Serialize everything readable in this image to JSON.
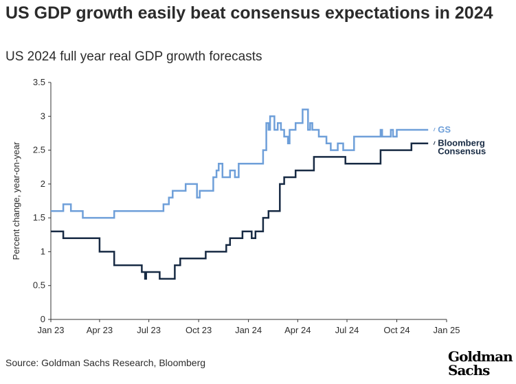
{
  "header": {
    "title": "US GDP growth easily beat consensus expectations in 2024",
    "subtitle": "US 2024 full year real GDP growth forecasts"
  },
  "footer": {
    "source": "Source: Goldman Sachs Research, Bloomberg",
    "logo_line1": "Goldman",
    "logo_line2": "Sachs"
  },
  "colors": {
    "gs": "#6e9fd9",
    "consensus": "#172a43",
    "axis": "#333333"
  },
  "chart_data": {
    "type": "line",
    "title": "US GDP growth easily beat consensus expectations in 2024",
    "subtitle": "US 2024 full year real GDP growth forecasts",
    "ylabel": "Percent change, year-on-year",
    "xlabel": "",
    "ylim": [
      0,
      3.5
    ],
    "yticks": [
      "0",
      "0.5",
      "1",
      "1.5",
      "2",
      "2.5",
      "3",
      "3.5"
    ],
    "xlim": [
      "2023-01-01",
      "2025-01-01"
    ],
    "xticks": [
      {
        "date": "2023-01-01",
        "label": "Jan 23"
      },
      {
        "date": "2023-04-01",
        "label": "Apr 23"
      },
      {
        "date": "2023-07-01",
        "label": "Jul 23"
      },
      {
        "date": "2023-10-01",
        "label": "Oct 23"
      },
      {
        "date": "2024-01-01",
        "label": "Jan 24"
      },
      {
        "date": "2024-04-01",
        "label": "Apr 24"
      },
      {
        "date": "2024-07-01",
        "label": "Jul 24"
      },
      {
        "date": "2024-10-01",
        "label": "Oct 24"
      },
      {
        "date": "2025-01-01",
        "label": "Jan 25"
      }
    ],
    "grid": false,
    "series": [
      {
        "name": "GS",
        "points": [
          [
            "2023-01-01",
            1.6
          ],
          [
            "2023-01-24",
            1.6
          ],
          [
            "2023-01-24",
            1.7
          ],
          [
            "2023-02-07",
            1.7
          ],
          [
            "2023-02-07",
            1.6
          ],
          [
            "2023-03-01",
            1.6
          ],
          [
            "2023-03-01",
            1.5
          ],
          [
            "2023-04-28",
            1.5
          ],
          [
            "2023-04-28",
            1.6
          ],
          [
            "2023-07-28",
            1.6
          ],
          [
            "2023-07-28",
            1.7
          ],
          [
            "2023-08-07",
            1.7
          ],
          [
            "2023-08-07",
            1.8
          ],
          [
            "2023-08-14",
            1.8
          ],
          [
            "2023-08-14",
            1.9
          ],
          [
            "2023-09-07",
            1.9
          ],
          [
            "2023-09-07",
            2.0
          ],
          [
            "2023-09-28",
            2.0
          ],
          [
            "2023-09-28",
            1.8
          ],
          [
            "2023-10-03",
            1.8
          ],
          [
            "2023-10-03",
            1.9
          ],
          [
            "2023-10-28",
            1.9
          ],
          [
            "2023-10-28",
            2.1
          ],
          [
            "2023-11-03",
            2.1
          ],
          [
            "2023-11-03",
            2.2
          ],
          [
            "2023-11-07",
            2.2
          ],
          [
            "2023-11-07",
            2.3
          ],
          [
            "2023-11-14",
            2.3
          ],
          [
            "2023-11-14",
            2.1
          ],
          [
            "2023-11-28",
            2.1
          ],
          [
            "2023-11-28",
            2.2
          ],
          [
            "2023-12-07",
            2.2
          ],
          [
            "2023-12-07",
            2.1
          ],
          [
            "2023-12-14",
            2.1
          ],
          [
            "2023-12-14",
            2.3
          ],
          [
            "2024-01-28",
            2.3
          ],
          [
            "2024-01-28",
            2.5
          ],
          [
            "2024-02-03",
            2.5
          ],
          [
            "2024-02-03",
            2.9
          ],
          [
            "2024-02-07",
            2.9
          ],
          [
            "2024-02-07",
            2.8
          ],
          [
            "2024-02-10",
            2.8
          ],
          [
            "2024-02-10",
            3.0
          ],
          [
            "2024-02-18",
            3.0
          ],
          [
            "2024-02-18",
            2.8
          ],
          [
            "2024-02-24",
            2.8
          ],
          [
            "2024-02-24",
            2.9
          ],
          [
            "2024-03-01",
            2.9
          ],
          [
            "2024-03-01",
            2.8
          ],
          [
            "2024-03-07",
            2.8
          ],
          [
            "2024-03-07",
            2.7
          ],
          [
            "2024-03-14",
            2.7
          ],
          [
            "2024-03-14",
            2.6
          ],
          [
            "2024-03-17",
            2.6
          ],
          [
            "2024-03-17",
            2.8
          ],
          [
            "2024-03-28",
            2.8
          ],
          [
            "2024-03-28",
            2.9
          ],
          [
            "2024-04-10",
            2.9
          ],
          [
            "2024-04-10",
            3.1
          ],
          [
            "2024-04-20",
            3.1
          ],
          [
            "2024-04-20",
            2.8
          ],
          [
            "2024-04-24",
            2.8
          ],
          [
            "2024-04-24",
            2.9
          ],
          [
            "2024-04-28",
            2.9
          ],
          [
            "2024-04-28",
            2.8
          ],
          [
            "2024-05-10",
            2.8
          ],
          [
            "2024-05-10",
            2.7
          ],
          [
            "2024-05-24",
            2.7
          ],
          [
            "2024-05-24",
            2.6
          ],
          [
            "2024-06-01",
            2.6
          ],
          [
            "2024-06-01",
            2.5
          ],
          [
            "2024-06-14",
            2.5
          ],
          [
            "2024-06-14",
            2.6
          ],
          [
            "2024-06-24",
            2.6
          ],
          [
            "2024-06-24",
            2.5
          ],
          [
            "2024-07-14",
            2.5
          ],
          [
            "2024-07-14",
            2.7
          ],
          [
            "2024-09-01",
            2.7
          ],
          [
            "2024-09-01",
            2.8
          ],
          [
            "2024-09-04",
            2.8
          ],
          [
            "2024-09-04",
            2.7
          ],
          [
            "2024-09-20",
            2.7
          ],
          [
            "2024-09-20",
            2.8
          ],
          [
            "2024-09-24",
            2.8
          ],
          [
            "2024-09-24",
            2.7
          ],
          [
            "2024-10-01",
            2.7
          ],
          [
            "2024-10-01",
            2.8
          ],
          [
            "2024-11-28",
            2.8
          ]
        ]
      },
      {
        "name": "Bloomberg Consensus",
        "points": [
          [
            "2023-01-01",
            1.3
          ],
          [
            "2023-01-24",
            1.3
          ],
          [
            "2023-01-24",
            1.2
          ],
          [
            "2023-04-01",
            1.2
          ],
          [
            "2023-04-01",
            1.0
          ],
          [
            "2023-04-28",
            1.0
          ],
          [
            "2023-04-28",
            0.8
          ],
          [
            "2023-06-18",
            0.8
          ],
          [
            "2023-06-18",
            0.7
          ],
          [
            "2023-06-24",
            0.7
          ],
          [
            "2023-06-24",
            0.6
          ],
          [
            "2023-06-26",
            0.6
          ],
          [
            "2023-06-26",
            0.7
          ],
          [
            "2023-07-21",
            0.7
          ],
          [
            "2023-07-21",
            0.6
          ],
          [
            "2023-08-18",
            0.6
          ],
          [
            "2023-08-18",
            0.8
          ],
          [
            "2023-08-28",
            0.8
          ],
          [
            "2023-08-28",
            0.9
          ],
          [
            "2023-10-07",
            0.9
          ],
          [
            "2023-10-07",
            0.9
          ],
          [
            "2023-10-14",
            0.9
          ],
          [
            "2023-10-14",
            1.0
          ],
          [
            "2023-11-21",
            1.0
          ],
          [
            "2023-11-21",
            1.1
          ],
          [
            "2023-11-28",
            1.1
          ],
          [
            "2023-11-28",
            1.2
          ],
          [
            "2023-12-21",
            1.2
          ],
          [
            "2023-12-21",
            1.3
          ],
          [
            "2024-01-07",
            1.3
          ],
          [
            "2024-01-07",
            1.2
          ],
          [
            "2024-01-14",
            1.2
          ],
          [
            "2024-01-14",
            1.3
          ],
          [
            "2024-01-28",
            1.3
          ],
          [
            "2024-01-28",
            1.5
          ],
          [
            "2024-02-07",
            1.5
          ],
          [
            "2024-02-07",
            1.6
          ],
          [
            "2024-02-28",
            1.6
          ],
          [
            "2024-02-28",
            2.0
          ],
          [
            "2024-03-07",
            2.0
          ],
          [
            "2024-03-07",
            2.1
          ],
          [
            "2024-03-28",
            2.1
          ],
          [
            "2024-03-28",
            2.2
          ],
          [
            "2024-05-01",
            2.2
          ],
          [
            "2024-05-01",
            2.4
          ],
          [
            "2024-06-28",
            2.4
          ],
          [
            "2024-06-28",
            2.3
          ],
          [
            "2024-09-01",
            2.3
          ],
          [
            "2024-09-01",
            2.5
          ],
          [
            "2024-10-28",
            2.5
          ],
          [
            "2024-10-28",
            2.6
          ],
          [
            "2024-11-28",
            2.6
          ]
        ]
      }
    ],
    "series_labels": [
      {
        "lines": [
          "GS"
        ]
      },
      {
        "lines": [
          "Bloomberg",
          "Consensus"
        ]
      }
    ]
  }
}
